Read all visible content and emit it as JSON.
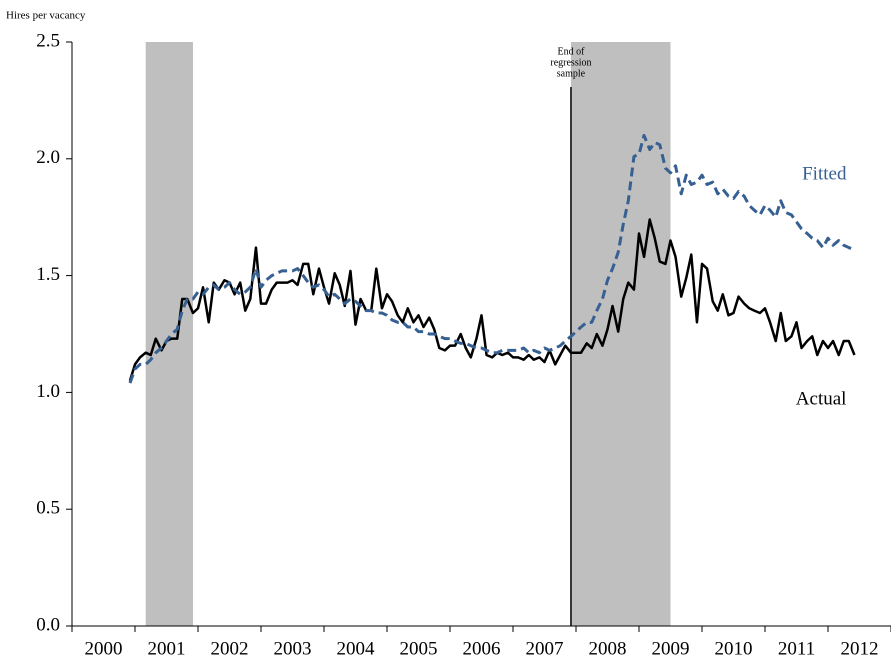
{
  "chart_data": {
    "type": "line",
    "y_label": "Hires per vacancy",
    "x": [
      2000.92,
      2001.0,
      2001.08,
      2001.17,
      2001.25,
      2001.33,
      2001.42,
      2001.5,
      2001.58,
      2001.67,
      2001.75,
      2001.83,
      2001.92,
      2002.0,
      2002.08,
      2002.17,
      2002.25,
      2002.33,
      2002.42,
      2002.5,
      2002.58,
      2002.67,
      2002.75,
      2002.83,
      2002.92,
      2003.0,
      2003.08,
      2003.17,
      2003.25,
      2003.33,
      2003.42,
      2003.5,
      2003.58,
      2003.67,
      2003.75,
      2003.83,
      2003.92,
      2004.0,
      2004.08,
      2004.17,
      2004.25,
      2004.33,
      2004.42,
      2004.5,
      2004.58,
      2004.67,
      2004.75,
      2004.83,
      2004.92,
      2005.0,
      2005.08,
      2005.17,
      2005.25,
      2005.33,
      2005.42,
      2005.5,
      2005.58,
      2005.67,
      2005.75,
      2005.83,
      2005.92,
      2006.0,
      2006.08,
      2006.17,
      2006.25,
      2006.33,
      2006.42,
      2006.5,
      2006.58,
      2006.67,
      2006.75,
      2006.83,
      2006.92,
      2007.0,
      2007.08,
      2007.17,
      2007.25,
      2007.33,
      2007.42,
      2007.5,
      2007.58,
      2007.67,
      2007.75,
      2007.83,
      2007.92,
      2008.0,
      2008.08,
      2008.17,
      2008.25,
      2008.33,
      2008.42,
      2008.5,
      2008.58,
      2008.67,
      2008.75,
      2008.83,
      2008.92,
      2009.0,
      2009.08,
      2009.17,
      2009.25,
      2009.33,
      2009.42,
      2009.5,
      2009.58,
      2009.67,
      2009.75,
      2009.83,
      2009.92,
      2010.0,
      2010.08,
      2010.17,
      2010.25,
      2010.33,
      2010.42,
      2010.5,
      2010.58,
      2010.67,
      2010.75,
      2010.83,
      2010.92,
      2011.0,
      2011.08,
      2011.17,
      2011.25,
      2011.33,
      2011.42,
      2011.5,
      2011.58,
      2011.67,
      2011.75,
      2011.83,
      2011.92,
      2012.0,
      2012.08,
      2012.17,
      2012.25,
      2012.33,
      2012.42
    ],
    "series": [
      {
        "name": "Actual",
        "color": "#000000",
        "dash": false,
        "values": [
          1.05,
          1.12,
          1.15,
          1.17,
          1.16,
          1.23,
          1.18,
          1.22,
          1.23,
          1.23,
          1.4,
          1.4,
          1.34,
          1.36,
          1.45,
          1.3,
          1.47,
          1.44,
          1.48,
          1.47,
          1.42,
          1.47,
          1.35,
          1.4,
          1.62,
          1.38,
          1.38,
          1.44,
          1.47,
          1.47,
          1.47,
          1.48,
          1.46,
          1.55,
          1.55,
          1.42,
          1.53,
          1.45,
          1.38,
          1.51,
          1.46,
          1.37,
          1.52,
          1.29,
          1.4,
          1.35,
          1.35,
          1.53,
          1.36,
          1.42,
          1.39,
          1.33,
          1.3,
          1.36,
          1.3,
          1.33,
          1.28,
          1.32,
          1.27,
          1.19,
          1.18,
          1.2,
          1.2,
          1.25,
          1.19,
          1.15,
          1.23,
          1.33,
          1.16,
          1.15,
          1.17,
          1.16,
          1.17,
          1.15,
          1.15,
          1.14,
          1.16,
          1.14,
          1.15,
          1.13,
          1.18,
          1.12,
          1.16,
          1.2,
          1.17,
          1.17,
          1.17,
          1.21,
          1.19,
          1.25,
          1.2,
          1.27,
          1.37,
          1.26,
          1.4,
          1.47,
          1.44,
          1.68,
          1.58,
          1.74,
          1.66,
          1.56,
          1.55,
          1.65,
          1.58,
          1.41,
          1.49,
          1.59,
          1.3,
          1.55,
          1.53,
          1.39,
          1.35,
          1.42,
          1.33,
          1.34,
          1.41,
          1.38,
          1.36,
          1.35,
          1.34,
          1.36,
          1.3,
          1.22,
          1.34,
          1.22,
          1.24,
          1.3,
          1.19,
          1.22,
          1.24,
          1.16,
          1.22,
          1.19,
          1.22,
          1.16,
          1.22,
          1.22,
          1.16
        ]
      },
      {
        "name": "Fitted",
        "color": "#376092",
        "dash": true,
        "values": [
          1.04,
          1.1,
          1.12,
          1.12,
          1.14,
          1.17,
          1.19,
          1.22,
          1.25,
          1.27,
          1.35,
          1.4,
          1.4,
          1.43,
          1.42,
          1.45,
          1.46,
          1.44,
          1.45,
          1.47,
          1.44,
          1.42,
          1.43,
          1.45,
          1.53,
          1.45,
          1.48,
          1.5,
          1.51,
          1.52,
          1.52,
          1.52,
          1.53,
          1.5,
          1.47,
          1.45,
          1.46,
          1.44,
          1.41,
          1.42,
          1.4,
          1.38,
          1.4,
          1.39,
          1.37,
          1.35,
          1.35,
          1.34,
          1.34,
          1.33,
          1.31,
          1.3,
          1.3,
          1.28,
          1.28,
          1.26,
          1.26,
          1.25,
          1.25,
          1.24,
          1.23,
          1.23,
          1.22,
          1.21,
          1.21,
          1.2,
          1.19,
          1.19,
          1.18,
          1.17,
          1.17,
          1.18,
          1.18,
          1.18,
          1.18,
          1.19,
          1.17,
          1.18,
          1.17,
          1.19,
          1.18,
          1.19,
          1.2,
          1.22,
          1.24,
          1.26,
          1.28,
          1.3,
          1.3,
          1.35,
          1.4,
          1.48,
          1.53,
          1.6,
          1.72,
          1.82,
          2.01,
          2.02,
          2.1,
          2.04,
          2.07,
          2.06,
          1.96,
          1.94,
          1.97,
          1.85,
          1.93,
          1.89,
          1.9,
          1.93,
          1.89,
          1.9,
          1.85,
          1.87,
          1.84,
          1.83,
          1.86,
          1.84,
          1.8,
          1.78,
          1.76,
          1.8,
          1.78,
          1.75,
          1.82,
          1.77,
          1.76,
          1.73,
          1.7,
          1.68,
          1.66,
          1.65,
          1.62,
          1.66,
          1.63,
          1.65,
          1.63,
          1.62,
          1.61
        ]
      }
    ],
    "xlim": [
      2000,
      2013
    ],
    "xticks": [
      {
        "value": 2000.5,
        "label": "2000"
      },
      {
        "value": 2001.5,
        "label": "2001"
      },
      {
        "value": 2002.5,
        "label": "2002"
      },
      {
        "value": 2003.5,
        "label": "2003"
      },
      {
        "value": 2004.5,
        "label": "2004"
      },
      {
        "value": 2005.5,
        "label": "2005"
      },
      {
        "value": 2006.5,
        "label": "2006"
      },
      {
        "value": 2007.5,
        "label": "2007"
      },
      {
        "value": 2008.5,
        "label": "2008"
      },
      {
        "value": 2009.5,
        "label": "2009"
      },
      {
        "value": 2010.5,
        "label": "2010"
      },
      {
        "value": 2011.5,
        "label": "2011"
      },
      {
        "value": 2012.5,
        "label": "2012"
      }
    ],
    "ylim": [
      0,
      2.5
    ],
    "yticks": [
      {
        "value": 0,
        "label": "0.0"
      },
      0.5,
      {
        "value": 1,
        "label": "1.0"
      },
      1.5,
      {
        "value": 2,
        "label": "2.0"
      },
      2.5
    ],
    "shaded_periods": [
      {
        "start": 2001.17,
        "end": 2001.92
      },
      {
        "start": 2007.92,
        "end": 2009.5
      }
    ],
    "shade_color": "#bfbfbf",
    "annotation": {
      "x": 2007.92,
      "lines": [
        "End of",
        "regression",
        "sample"
      ]
    }
  }
}
